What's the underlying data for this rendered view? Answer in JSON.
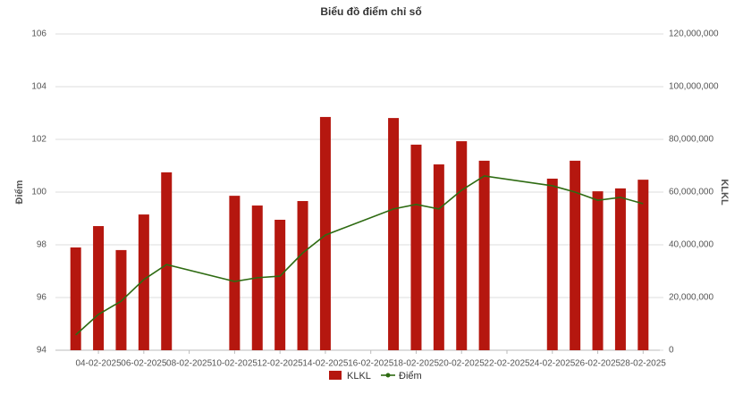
{
  "chart_data": {
    "type": "combo",
    "title": "Biểu đồ điểm chỉ số",
    "y_label": "Điểm",
    "y2_label": "KLKL",
    "categories": [
      null,
      "04-02-2025",
      null,
      "06-02-2025",
      null,
      "08-02-2025",
      null,
      "10-02-2025",
      null,
      "12-02-2025",
      null,
      "14-02-2025",
      null,
      "16-02-2025",
      null,
      "18-02-2025",
      null,
      "20-02-2025",
      null,
      "22-02-2025",
      null,
      "24-02-2025",
      null,
      "26-02-2025",
      null,
      "28-02-2025"
    ],
    "series": [
      {
        "name": "KLKL",
        "type": "bar",
        "axis": "y2",
        "color": "#b5170f",
        "values": [
          39000000,
          47100000,
          38000000,
          51500000,
          67500000,
          null,
          null,
          58600000,
          54900000,
          49500000,
          56600000,
          88500000,
          null,
          null,
          88100000,
          78000000,
          70500000,
          79300000,
          71900000,
          null,
          null,
          65100000,
          71900000,
          60300000,
          61400000,
          64700000
        ]
      },
      {
        "name": "Điểm",
        "type": "line",
        "color": "#2e6b12",
        "span_gaps": true,
        "values": [
          94.58,
          95.36,
          95.86,
          96.68,
          97.25,
          null,
          null,
          96.61,
          96.75,
          96.81,
          97.69,
          98.37,
          null,
          null,
          99.36,
          99.53,
          99.36,
          100.07,
          100.61,
          null,
          null,
          100.24,
          100.0,
          99.69,
          99.8,
          99.56
        ]
      }
    ],
    "ylim": [
      94,
      106
    ],
    "yticks": [
      94,
      96,
      98,
      100,
      102,
      104,
      106
    ],
    "y2lim": [
      0,
      120000000
    ],
    "y2ticks": [
      0,
      {
        "value": 20000000,
        "label": "20,000,000"
      },
      {
        "value": 40000000,
        "label": "40,000,000"
      },
      {
        "value": 60000000,
        "label": "60,000,000"
      },
      {
        "value": 80000000,
        "label": "80,000,000"
      },
      {
        "value": 100000000,
        "label": "100,000,000"
      },
      {
        "value": 120000000,
        "label": "120,000,000"
      }
    ],
    "grid": true,
    "legend": "bottom"
  }
}
